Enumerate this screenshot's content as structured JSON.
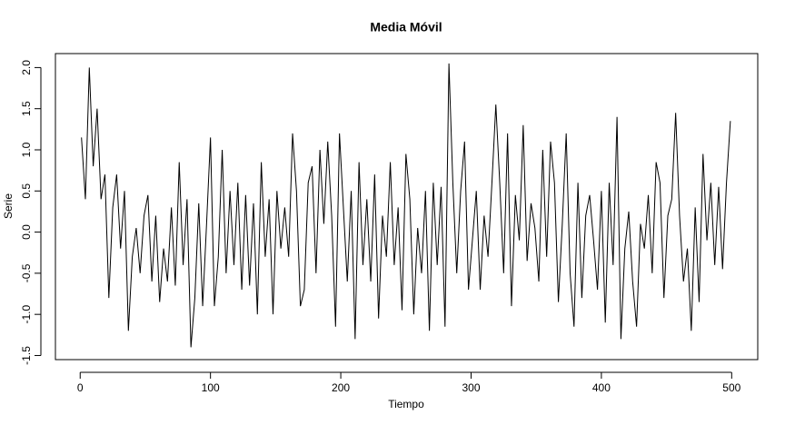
{
  "chart_data": {
    "type": "line",
    "title": "Media Móvil",
    "xlabel": "Tiempo",
    "ylabel": "Serie",
    "x": [
      1,
      4,
      7,
      10,
      13,
      16,
      19,
      22,
      25,
      28,
      31,
      34,
      37,
      40,
      43,
      46,
      49,
      52,
      55,
      58,
      61,
      64,
      67,
      70,
      73,
      76,
      79,
      82,
      85,
      88,
      91,
      94,
      97,
      100,
      103,
      106,
      109,
      112,
      115,
      118,
      121,
      124,
      127,
      130,
      133,
      136,
      139,
      142,
      145,
      148,
      151,
      154,
      157,
      160,
      163,
      166,
      169,
      172,
      175,
      178,
      181,
      184,
      187,
      190,
      193,
      196,
      199,
      202,
      205,
      208,
      211,
      214,
      217,
      220,
      223,
      226,
      229,
      232,
      235,
      238,
      241,
      244,
      247,
      250,
      253,
      256,
      259,
      262,
      265,
      268,
      271,
      274,
      277,
      280,
      283,
      286,
      289,
      292,
      295,
      298,
      301,
      304,
      307,
      310,
      313,
      316,
      319,
      322,
      325,
      328,
      331,
      334,
      337,
      340,
      343,
      346,
      349,
      352,
      355,
      358,
      361,
      364,
      367,
      370,
      373,
      376,
      379,
      382,
      385,
      388,
      391,
      394,
      397,
      400,
      403,
      406,
      409,
      412,
      415,
      418,
      421,
      424,
      427,
      430,
      433,
      436,
      439,
      442,
      445,
      448,
      451,
      454,
      457,
      460,
      463,
      466,
      469,
      472,
      475,
      478,
      481,
      484,
      487,
      490,
      493,
      496,
      499
    ],
    "series": [
      {
        "color": "#000000",
        "values": [
          1.15,
          0.4,
          2.0,
          0.8,
          1.5,
          0.4,
          0.7,
          -0.8,
          0.3,
          0.7,
          -0.2,
          0.5,
          -1.2,
          -0.3,
          0.05,
          -0.5,
          0.2,
          0.45,
          -0.6,
          0.2,
          -0.85,
          -0.2,
          -0.6,
          0.3,
          -0.65,
          0.85,
          -0.4,
          0.4,
          -1.4,
          -0.8,
          0.35,
          -0.9,
          0.1,
          1.15,
          -0.9,
          -0.3,
          1.0,
          -0.5,
          0.5,
          -0.4,
          0.6,
          -0.7,
          0.45,
          -0.65,
          0.35,
          -1.0,
          0.85,
          -0.3,
          0.4,
          -1.0,
          0.5,
          -0.2,
          0.3,
          -0.3,
          1.2,
          0.5,
          -0.9,
          -0.7,
          0.6,
          0.8,
          -0.5,
          1.0,
          0.1,
          1.1,
          0.2,
          -1.15,
          1.2,
          0.3,
          -0.6,
          0.5,
          -1.3,
          0.85,
          -0.4,
          0.4,
          -0.6,
          0.7,
          -1.05,
          0.2,
          -0.3,
          0.85,
          -0.4,
          0.3,
          -0.95,
          0.95,
          0.4,
          -1.0,
          0.05,
          -0.5,
          0.5,
          -1.2,
          0.6,
          -0.4,
          0.55,
          -1.15,
          2.05,
          0.6,
          -0.5,
          0.5,
          1.1,
          -0.7,
          -0.1,
          0.5,
          -0.7,
          0.2,
          -0.3,
          0.6,
          1.55,
          0.6,
          -0.5,
          1.2,
          -0.9,
          0.45,
          -0.1,
          1.3,
          -0.35,
          0.35,
          0.05,
          -0.6,
          1.0,
          -0.3,
          1.1,
          0.6,
          -0.85,
          0.1,
          1.2,
          -0.5,
          -1.15,
          0.6,
          -0.8,
          0.2,
          0.45,
          -0.1,
          -0.7,
          0.5,
          -1.1,
          0.6,
          -0.4,
          1.4,
          -1.3,
          -0.2,
          0.25,
          -0.6,
          -1.15,
          0.1,
          -0.2,
          0.45,
          -0.5,
          0.85,
          0.6,
          -0.8,
          0.2,
          0.4,
          1.45,
          0.2,
          -0.6,
          -0.2,
          -1.2,
          0.3,
          -0.85,
          0.95,
          -0.1,
          0.6,
          -0.4,
          0.55,
          -0.45,
          0.6,
          1.35
        ]
      }
    ],
    "xlim": [
      -19,
      520
    ],
    "ylim": [
      -1.55,
      2.17
    ],
    "xticks": [
      0,
      100,
      200,
      300,
      400,
      500
    ],
    "yticks": [
      -1.5,
      {
        "value": -1,
        "label": "-1.0"
      },
      -0.5,
      {
        "value": 0,
        "label": "0.0"
      },
      0.5,
      {
        "value": 1,
        "label": "1.0"
      },
      1.5,
      {
        "value": 2,
        "label": "2.0"
      }
    ]
  }
}
